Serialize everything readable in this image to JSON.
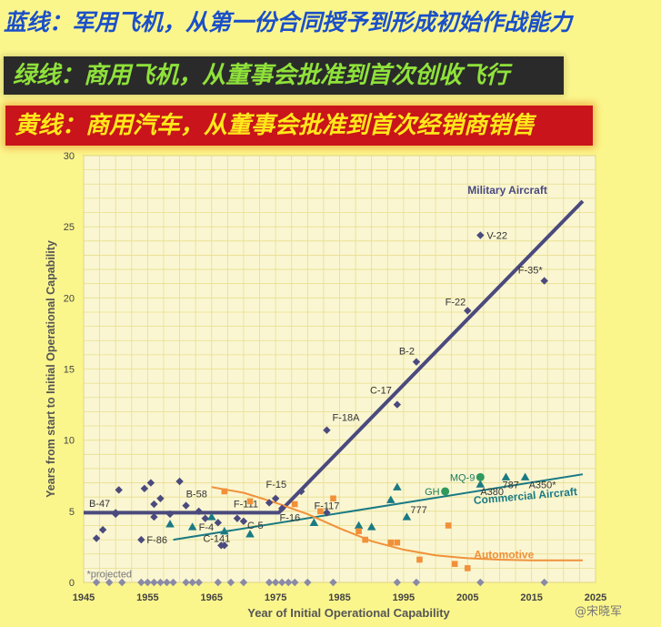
{
  "banners": {
    "blue": "蓝线：军用飞机，从第一份合同授予到形成初始作战能力",
    "green": "绿线：商用飞机，从董事会批准到首次创收飞行",
    "yellow": "黄线：商用汽车，从董事会批准到首次经销商销售"
  },
  "watermark": "@宋晓军",
  "colors": {
    "military": "#4a4a7e",
    "commercial": "#1a7a84",
    "automotive": "#f0913a",
    "plot_bg": "#faf6d2",
    "grid": "#e8de8a"
  },
  "chart_data": {
    "type": "scatter",
    "xlabel": "Year of Initial Operational Capability",
    "ylabel": "Years from start to Initial Operational Capability",
    "xlim": [
      1945,
      2025
    ],
    "ylim": [
      0,
      30
    ],
    "x_ticks": [
      1945,
      1955,
      1965,
      1975,
      1985,
      1995,
      2005,
      2015,
      2025
    ],
    "y_ticks": [
      0,
      5,
      10,
      15,
      20,
      25,
      30
    ],
    "grid": true,
    "footnote": "*projected",
    "series": [
      {
        "name": "Military Aircraft",
        "marker": "diamond",
        "trend": [
          [
            1945,
            4.9
          ],
          [
            1975.5,
            4.9
          ],
          [
            2023,
            26.8
          ]
        ],
        "points": [
          {
            "x": 1947,
            "y": 3.1
          },
          {
            "x": 1948,
            "y": 3.7
          },
          {
            "x": 1950,
            "y": 4.8,
            "label": "B-47"
          },
          {
            "x": 1950.5,
            "y": 6.5
          },
          {
            "x": 1950,
            "y": 4.9
          },
          {
            "x": 1954,
            "y": 3.0,
            "label": "F-86"
          },
          {
            "x": 1954.5,
            "y": 6.6
          },
          {
            "x": 1955.5,
            "y": 7.0
          },
          {
            "x": 1956,
            "y": 5.5
          },
          {
            "x": 1957,
            "y": 5.9
          },
          {
            "x": 1956,
            "y": 4.6
          },
          {
            "x": 1958.5,
            "y": 4.8
          },
          {
            "x": 1960,
            "y": 7.1
          },
          {
            "x": 1961,
            "y": 5.4,
            "label": "B-58"
          },
          {
            "x": 1963,
            "y": 5.0
          },
          {
            "x": 1964,
            "y": 4.5
          },
          {
            "x": 1966,
            "y": 4.2
          },
          {
            "x": 1966.5,
            "y": 2.6,
            "label": "C-141"
          },
          {
            "x": 1967,
            "y": 2.6
          },
          {
            "x": 1969,
            "y": 4.5,
            "label": "F-111"
          },
          {
            "x": 1970,
            "y": 4.3,
            "label": "C-5"
          },
          {
            "x": 1974,
            "y": 5.6
          },
          {
            "x": 1975,
            "y": 5.9,
            "label": "F-15"
          },
          {
            "x": 1976,
            "y": 5.2,
            "label": "F-16"
          },
          {
            "x": 1979,
            "y": 6.4
          },
          {
            "x": 1983,
            "y": 10.7,
            "label": "F-18A"
          },
          {
            "x": 1983,
            "y": 4.9,
            "label": "F-117"
          },
          {
            "x": 1994,
            "y": 12.5,
            "label": "C-17"
          },
          {
            "x": 1997,
            "y": 15.5,
            "label": "B-2"
          },
          {
            "x": 2005,
            "y": 19.1,
            "label": "F-22"
          },
          {
            "x": 2007,
            "y": 24.4,
            "label": "V-22"
          },
          {
            "x": 2017,
            "y": 21.2,
            "label": "F-35*"
          }
        ]
      },
      {
        "name": "Commercial Aircraft",
        "marker": "triangle",
        "trend": [
          [
            1959,
            3.0
          ],
          [
            2023,
            7.6
          ]
        ],
        "points": [
          {
            "x": 1958.5,
            "y": 4.1
          },
          {
            "x": 1962,
            "y": 3.9,
            "label": "F-4"
          },
          {
            "x": 1965,
            "y": 4.6
          },
          {
            "x": 1967,
            "y": 3.6
          },
          {
            "x": 1971,
            "y": 3.4
          },
          {
            "x": 1981,
            "y": 4.2
          },
          {
            "x": 1988,
            "y": 4.0
          },
          {
            "x": 1990,
            "y": 3.9
          },
          {
            "x": 1993,
            "y": 5.8
          },
          {
            "x": 1994,
            "y": 6.7
          },
          {
            "x": 1995.5,
            "y": 4.6,
            "label": "777"
          },
          {
            "x": 2007,
            "y": 6.9,
            "label": "A380"
          },
          {
            "x": 2011,
            "y": 7.4,
            "label": "787"
          },
          {
            "x": 2014,
            "y": 7.4,
            "label": "A350*"
          }
        ],
        "circle_points": [
          {
            "x": 2001.5,
            "y": 6.4,
            "label": "GH"
          },
          {
            "x": 2007,
            "y": 7.4,
            "label": "MQ-9"
          }
        ]
      },
      {
        "name": "Automotive",
        "marker": "square",
        "trend": [
          [
            1965,
            6.7
          ],
          [
            1970,
            6.3
          ],
          [
            1975,
            5.6
          ],
          [
            1980,
            4.8
          ],
          [
            1985,
            3.8
          ],
          [
            1990,
            2.9
          ],
          [
            1995,
            2.3
          ],
          [
            2000,
            1.9
          ],
          [
            2005,
            1.7
          ],
          [
            2010,
            1.6
          ],
          [
            2015,
            1.55
          ],
          [
            2023,
            1.55
          ]
        ],
        "points": [
          {
            "x": 1967,
            "y": 6.4
          },
          {
            "x": 1971,
            "y": 5.7
          },
          {
            "x": 1978,
            "y": 5.5
          },
          {
            "x": 1982,
            "y": 5.0
          },
          {
            "x": 1984,
            "y": 5.9
          },
          {
            "x": 1988,
            "y": 3.6
          },
          {
            "x": 1989,
            "y": 3.0
          },
          {
            "x": 1993,
            "y": 2.8
          },
          {
            "x": 1994,
            "y": 2.8
          },
          {
            "x": 1997.5,
            "y": 1.6
          },
          {
            "x": 2002,
            "y": 4.0
          },
          {
            "x": 2003,
            "y": 1.3
          },
          {
            "x": 2005,
            "y": 1.0
          }
        ]
      }
    ],
    "baseline_diamonds_x": [
      1947,
      1949,
      1951,
      1954,
      1955,
      1956,
      1957,
      1958,
      1959,
      1961,
      1962,
      1963,
      1966,
      1968,
      1970,
      1974,
      1975,
      1976,
      1977,
      1978,
      1980,
      1984,
      1994,
      1997,
      2007,
      2017
    ],
    "series_labels": [
      {
        "series": "Military Aircraft",
        "text": "Military Aircraft",
        "x": 2005,
        "y": 27.3
      },
      {
        "series": "Commercial Aircraft",
        "text": "Commercial Aircraft",
        "x": 2006,
        "y": 5.5
      },
      {
        "series": "Automotive",
        "text": "Automotive",
        "x": 2006,
        "y": 1.7
      }
    ]
  }
}
